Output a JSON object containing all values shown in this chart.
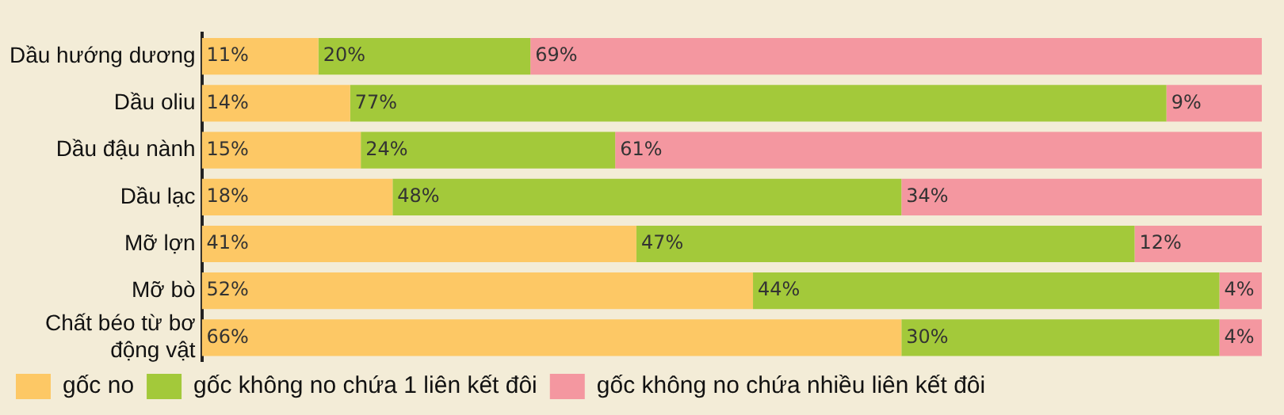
{
  "chart_data": {
    "type": "bar",
    "orientation": "horizontal",
    "stacked": true,
    "legend": "bottom",
    "grid": false,
    "tick_labels": "y",
    "categories": [
      "Dầu hướng dương",
      "Dầu oliu",
      "Dầu đậu nành",
      "Dầu lạc",
      "Mỡ lợn",
      "Mỡ bò",
      "Chất béo từ bơ động vật"
    ],
    "series": [
      {
        "name": "gốc no",
        "color": "#fdc865",
        "values": [
          11,
          14,
          15,
          18,
          41,
          52,
          66
        ],
        "value_labels": [
          "11%",
          "14%",
          "15%",
          "18%",
          "41%",
          "52%",
          "66%"
        ]
      },
      {
        "name": "gốc không no chứa 1 liên kết đôi",
        "color": "#a3c93a",
        "values": [
          20,
          77,
          24,
          48,
          47,
          44,
          30
        ],
        "value_labels": [
          "20%",
          "77%",
          "24%",
          "48%",
          "47%",
          "44%",
          "30%"
        ]
      },
      {
        "name": "gốc không no chứa nhiều liên kết đôi",
        "color": "#f497a0",
        "values": [
          69,
          9,
          61,
          34,
          12,
          4,
          4
        ],
        "value_labels": [
          "69%",
          "9%",
          "61%",
          "34%",
          "12%",
          "4%",
          "4%"
        ]
      }
    ]
  }
}
